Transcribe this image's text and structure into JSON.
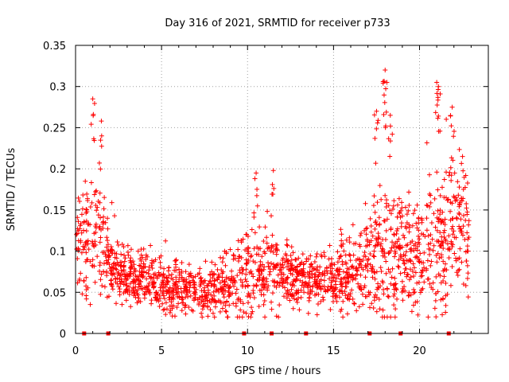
{
  "chart_data": {
    "type": "scatter",
    "title": "Day 316 of 2021, SRMTID for receiver p733",
    "xlabel": "GPS time / hours",
    "ylabel": "SRMTID / TECUs",
    "xlim": [
      0,
      24
    ],
    "ylim": [
      0,
      0.35
    ],
    "x_ticks": [
      0,
      5,
      10,
      15,
      20
    ],
    "x_tick_labels": [
      "0",
      "5",
      "10",
      "15",
      "20"
    ],
    "y_ticks": [
      0,
      0.05,
      0.1,
      0.15,
      0.2,
      0.25,
      0.3,
      0.35
    ],
    "y_tick_labels": [
      "0",
      "0.05",
      "0.1",
      "0.15",
      "0.2",
      "0.25",
      "0.3",
      "0.35"
    ],
    "grid": true,
    "marker": "+",
    "color": "#ff0000",
    "baseline_markers_x": [
      0.5,
      1.9,
      9.8,
      11.4,
      13.4,
      17.1,
      18.9,
      21.7
    ],
    "envelope": {
      "hours": [
        0,
        0.5,
        1.0,
        1.5,
        2.0,
        3.0,
        4.0,
        5.0,
        6.0,
        7.0,
        8.0,
        9.0,
        10.0,
        11.0,
        12.0,
        13.0,
        14.0,
        15.0,
        16.0,
        17.0,
        18.0,
        19.0,
        20.0,
        21.0,
        22.0,
        23.0
      ],
      "median": [
        0.11,
        0.11,
        0.12,
        0.11,
        0.085,
        0.07,
        0.065,
        0.058,
        0.055,
        0.05,
        0.052,
        0.058,
        0.075,
        0.08,
        0.068,
        0.065,
        0.065,
        0.065,
        0.07,
        0.09,
        0.1,
        0.09,
        0.1,
        0.11,
        0.13,
        0.12
      ],
      "spread": [
        0.03,
        0.04,
        0.07,
        0.05,
        0.025,
        0.02,
        0.022,
        0.02,
        0.018,
        0.018,
        0.02,
        0.025,
        0.035,
        0.035,
        0.025,
        0.022,
        0.022,
        0.025,
        0.03,
        0.04,
        0.06,
        0.045,
        0.045,
        0.06,
        0.05,
        0.045
      ]
    },
    "peaks": [
      {
        "x": 1.0,
        "y": 0.285
      },
      {
        "x": 1.5,
        "y": 0.258
      },
      {
        "x": 10.5,
        "y": 0.195
      },
      {
        "x": 11.5,
        "y": 0.198
      },
      {
        "x": 17.5,
        "y": 0.27
      },
      {
        "x": 18.0,
        "y": 0.32
      },
      {
        "x": 18.1,
        "y": 0.305
      },
      {
        "x": 18.3,
        "y": 0.265
      },
      {
        "x": 21.0,
        "y": 0.305
      },
      {
        "x": 21.1,
        "y": 0.3
      },
      {
        "x": 21.9,
        "y": 0.275
      },
      {
        "x": 22.5,
        "y": 0.215
      }
    ],
    "point_count": 1900,
    "seed": 316
  }
}
